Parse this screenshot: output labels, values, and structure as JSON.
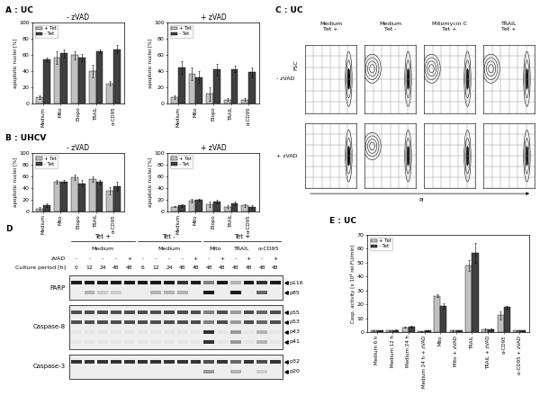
{
  "panel_labels": [
    "A : UC",
    "B : UHCV",
    "C : UC",
    "D",
    "E : UC"
  ],
  "chart_data": [
    {
      "type": "bar",
      "title": "- zVAD",
      "y_label": "apoptotic nuclei [%]",
      "categories": [
        "Medium",
        "Mito",
        "Etopo",
        "TRAIL",
        "α-CD95"
      ],
      "series": [
        {
          "name": "+ Tet",
          "color": "#c0c0c0",
          "values": [
            8,
            57,
            60,
            40,
            25
          ],
          "errors": [
            2,
            8,
            5,
            8,
            3
          ]
        },
        {
          "name": "- Tet",
          "color": "#404040",
          "values": [
            55,
            62,
            57,
            65,
            67
          ],
          "errors": [
            2,
            5,
            4,
            2,
            5
          ]
        }
      ],
      "ylim": [
        0,
        100
      ],
      "yticks": [
        0,
        20,
        40,
        60,
        80,
        100
      ],
      "legend": "upper left"
    },
    {
      "type": "bar",
      "title": "+ zVAD",
      "y_label": "apoptotic nuclei [%]",
      "categories": [
        "Medium",
        "Mito",
        "Etopo",
        "TRAIL",
        "α-CD95"
      ],
      "series": [
        {
          "name": "+ Tet",
          "color": "#c0c0c0",
          "values": [
            8,
            37,
            12,
            5,
            5
          ],
          "errors": [
            2,
            8,
            8,
            2,
            2
          ]
        },
        {
          "name": "- Tet",
          "color": "#404040",
          "values": [
            45,
            33,
            42,
            43,
            39
          ],
          "errors": [
            8,
            7,
            7,
            4,
            6
          ]
        }
      ],
      "ylim": [
        0,
        100
      ],
      "yticks": [
        0,
        20,
        40,
        60,
        80,
        100
      ],
      "legend": "upper left"
    },
    {
      "type": "bar",
      "title": "- zVAD",
      "y_label": "apoptotic nuclei [%]",
      "categories": [
        "Medium",
        "Mito",
        "Etopo",
        "TRAIL",
        "α-CD95"
      ],
      "series": [
        {
          "name": "+ Tet",
          "color": "#c0c0c0",
          "values": [
            5,
            50,
            58,
            55,
            35
          ],
          "errors": [
            2,
            3,
            4,
            5,
            6
          ]
        },
        {
          "name": "- Tet",
          "color": "#404040",
          "values": [
            10,
            51,
            48,
            50,
            43
          ],
          "errors": [
            3,
            2,
            5,
            4,
            8
          ]
        }
      ],
      "ylim": [
        0,
        100
      ],
      "yticks": [
        0,
        20,
        40,
        60,
        80,
        100
      ],
      "legend": "upper left"
    },
    {
      "type": "bar",
      "title": "+ zVAD",
      "y_label": "apoptotic nuclei [%]",
      "categories": [
        "Medium",
        "Mito",
        "Etopo",
        "TRAIL",
        "α-CD95"
      ],
      "series": [
        {
          "name": "+ Tet",
          "color": "#c0c0c0",
          "values": [
            8,
            18,
            12,
            8,
            10
          ],
          "errors": [
            1,
            3,
            4,
            2,
            2
          ]
        },
        {
          "name": "- Tet",
          "color": "#404040",
          "values": [
            10,
            20,
            17,
            13,
            8
          ],
          "errors": [
            2,
            2,
            3,
            3,
            2
          ]
        }
      ],
      "ylim": [
        0,
        100
      ],
      "yticks": [
        0,
        20,
        40,
        60,
        80,
        100
      ],
      "legend": "upper left"
    },
    {
      "type": "bar",
      "y_label": "Casp. activity [x 10⁴ rel.FU/min]",
      "categories": [
        "Medium 6 h",
        "Medium 12 h",
        "Medium 24 h",
        "Medium 24 h + zVAD",
        "Mito",
        "Mito + zVAD",
        "TRAIL",
        "TRAIL + zVAD",
        "α-CD95",
        "α-CD95 + zVAD"
      ],
      "series": [
        {
          "name": "+ Tet",
          "color": "#c0c0c0",
          "values": [
            1,
            1,
            3.5,
            0.5,
            26,
            1,
            48,
            2,
            12,
            1
          ],
          "errors": [
            0.3,
            0.3,
            0.5,
            0.2,
            1,
            0.3,
            4,
            0.5,
            3,
            0.3
          ]
        },
        {
          "name": "- Tet",
          "color": "#404040",
          "values": [
            1,
            1.5,
            4,
            1,
            19,
            1,
            57,
            2,
            18,
            1
          ],
          "errors": [
            0.3,
            0.3,
            0.5,
            0.2,
            2,
            0.3,
            7,
            0.5,
            1,
            0.3
          ]
        }
      ],
      "ylim": [
        0,
        70
      ],
      "yticks": [
        0,
        10,
        20,
        30,
        40,
        50,
        60,
        70
      ],
      "legend": "upper left"
    }
  ],
  "flow_cytometry": {
    "columns": [
      [
        "Medium",
        "Tet +"
      ],
      [
        "Medium",
        "Tet -"
      ],
      [
        "Mitomycin C",
        "Tet +"
      ],
      [
        "TRAIL",
        "Tet +"
      ]
    ],
    "rows": [
      "- zVAD",
      "+ zVAD"
    ],
    "y_label": "FSC",
    "x_label": "PI"
  },
  "western_blot": {
    "groups": [
      {
        "label": "Tet +",
        "span": 5
      },
      {
        "label": "Tet -",
        "span": 5
      },
      {
        "label": "Tet +",
        "span": 6
      }
    ],
    "treatments": [
      {
        "label": "Medium",
        "span": 5
      },
      {
        "label": "Medium",
        "span": 5
      },
      {
        "label": "Mito",
        "span": 2
      },
      {
        "label": "TRAIL",
        "span": 2
      },
      {
        "label": "α-CD95",
        "span": 2
      }
    ],
    "rows": [
      {
        "label": "zVAD",
        "values": [
          "-",
          "-",
          "-",
          "-",
          "+",
          "-",
          "-",
          "-",
          "-",
          "+",
          "-",
          "+",
          "-",
          "+",
          "-",
          "+"
        ]
      },
      {
        "label": "Culture period [h]",
        "values": [
          0,
          12,
          24,
          48,
          48,
          6,
          12,
          24,
          48,
          48,
          48,
          48,
          48,
          48,
          48,
          48
        ]
      }
    ],
    "blots": [
      {
        "label": "PARP",
        "bands": [
          {
            "label": "p116",
            "intensity": [
              0.9,
              0.9,
              0.9,
              0.9,
              0.9,
              0.9,
              0.9,
              0.9,
              0.8,
              0.9,
              0.5,
              0.9,
              0.3,
              0.9,
              0.8,
              0.9
            ]
          },
          {
            "label": "p85",
            "intensity": [
              0,
              0.3,
              0.2,
              0.2,
              0,
              0,
              0.3,
              0.3,
              0.3,
              0,
              0.9,
              0,
              0.9,
              0,
              0.6,
              0
            ]
          }
        ]
      },
      {
        "label": "Caspase-8",
        "bands": [
          {
            "label": "p55",
            "intensity": [
              0.7,
              0.7,
              0.7,
              0.7,
              0.7,
              0.7,
              0.7,
              0.7,
              0.7,
              0.7,
              0.5,
              0.7,
              0.4,
              0.7,
              0.6,
              0.7
            ]
          },
          {
            "label": "p53",
            "intensity": [
              0.7,
              0.7,
              0.7,
              0.7,
              0.7,
              0.7,
              0.7,
              0.7,
              0.7,
              0.7,
              0.5,
              0.7,
              0.4,
              0.7,
              0.6,
              0.7
            ]
          },
          {
            "label": "p43",
            "intensity": [
              0.1,
              0.1,
              0.1,
              0.1,
              0.1,
              0.1,
              0.1,
              0.1,
              0.1,
              0.1,
              0.8,
              0.1,
              0.4,
              0.1,
              0.3,
              0.1
            ]
          },
          {
            "label": "p41",
            "intensity": [
              0.1,
              0.1,
              0.1,
              0.1,
              0.1,
              0.1,
              0.1,
              0.1,
              0.1,
              0.1,
              0.8,
              0.1,
              0.4,
              0.1,
              0.3,
              0.1
            ]
          }
        ]
      },
      {
        "label": "Caspase-3",
        "bands": [
          {
            "label": "p32",
            "intensity": [
              0.8,
              0.8,
              0.8,
              0.8,
              0.8,
              0.8,
              0.8,
              0.8,
              0.8,
              0.8,
              0.7,
              0.8,
              0.6,
              0.8,
              0.7,
              0.8
            ]
          },
          {
            "label": "p20",
            "intensity": [
              0,
              0,
              0,
              0,
              0,
              0,
              0,
              0,
              0,
              0,
              0.4,
              0,
              0.3,
              0,
              0.2,
              0
            ]
          }
        ]
      }
    ]
  }
}
